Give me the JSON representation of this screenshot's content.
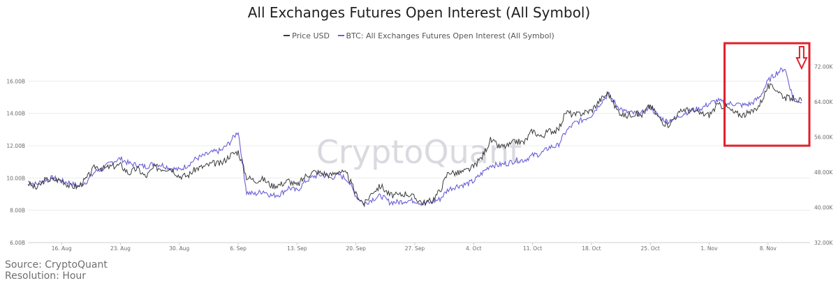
{
  "title": "All Exchanges Futures Open Interest (All Symbol)",
  "watermark": "CryptoQuant",
  "footer": {
    "source": "Source: CryptoQuant",
    "resolution": "Resolution: Hour"
  },
  "colors": {
    "price": "#3a3a3a",
    "open_interest": "#6a5fd6",
    "highlight": "#e0202a",
    "grid": "#ececec"
  },
  "chart_data": {
    "type": "line",
    "title": "All Exchanges Futures Open Interest (All Symbol)",
    "legend_position": "top-center",
    "grid": true,
    "x_range": [
      "2021-08-12",
      "2021-11-13"
    ],
    "x_ticks": [
      {
        "date": "2021-08-16",
        "label": "16. Aug"
      },
      {
        "date": "2021-08-23",
        "label": "23. Aug"
      },
      {
        "date": "2021-08-30",
        "label": "30. Aug"
      },
      {
        "date": "2021-09-06",
        "label": "6. Sep"
      },
      {
        "date": "2021-09-13",
        "label": "13. Sep"
      },
      {
        "date": "2021-09-20",
        "label": "20. Sep"
      },
      {
        "date": "2021-09-27",
        "label": "27. Sep"
      },
      {
        "date": "2021-10-04",
        "label": "4. Oct"
      },
      {
        "date": "2021-10-11",
        "label": "11. Oct"
      },
      {
        "date": "2021-10-18",
        "label": "18. Oct"
      },
      {
        "date": "2021-10-25",
        "label": "25. Oct"
      },
      {
        "date": "2021-11-01",
        "label": "1. Nov"
      },
      {
        "date": "2021-11-08",
        "label": "8. Nov"
      }
    ],
    "y_left": {
      "range": [
        6,
        18
      ],
      "ticks": [
        6,
        8,
        10,
        12,
        14,
        16
      ],
      "tick_labels": [
        "6.00B",
        "8.00B",
        "10.00B",
        "12.00B",
        "14.00B",
        "16.00B"
      ]
    },
    "y_right": {
      "range": [
        32000,
        76000
      ],
      "ticks": [
        32000,
        40000,
        48000,
        56000,
        64000,
        72000
      ],
      "tick_labels": [
        "32.00K",
        "40.00K",
        "48.00K",
        "56.00K",
        "64.00K",
        "72.00K"
      ]
    },
    "series": [
      {
        "name": "Price USD",
        "axis": "right",
        "points": [
          [
            "2021-08-12",
            45500
          ],
          [
            "2021-08-13",
            44300
          ],
          [
            "2021-08-14",
            46200
          ],
          [
            "2021-08-15",
            46300
          ],
          [
            "2021-08-16",
            46200
          ],
          [
            "2021-08-17",
            44800
          ],
          [
            "2021-08-18",
            44700
          ],
          [
            "2021-08-19",
            46600
          ],
          [
            "2021-08-20",
            49300
          ],
          [
            "2021-08-21",
            48800
          ],
          [
            "2021-08-22",
            49300
          ],
          [
            "2021-08-23",
            49600
          ],
          [
            "2021-08-24",
            47700
          ],
          [
            "2021-08-25",
            48900
          ],
          [
            "2021-08-26",
            46900
          ],
          [
            "2021-08-27",
            49100
          ],
          [
            "2021-08-28",
            48800
          ],
          [
            "2021-08-29",
            48900
          ],
          [
            "2021-08-30",
            47100
          ],
          [
            "2021-08-31",
            47200
          ],
          [
            "2021-09-01",
            48800
          ],
          [
            "2021-09-02",
            49300
          ],
          [
            "2021-09-03",
            50000
          ],
          [
            "2021-09-04",
            49900
          ],
          [
            "2021-09-05",
            51800
          ],
          [
            "2021-09-06",
            52700
          ],
          [
            "2021-09-07",
            46900
          ],
          [
            "2021-09-08",
            46100
          ],
          [
            "2021-09-09",
            46400
          ],
          [
            "2021-09-10",
            44900
          ],
          [
            "2021-09-11",
            45200
          ],
          [
            "2021-09-12",
            46100
          ],
          [
            "2021-09-13",
            44900
          ],
          [
            "2021-09-14",
            47100
          ],
          [
            "2021-09-15",
            48100
          ],
          [
            "2021-09-16",
            47800
          ],
          [
            "2021-09-17",
            47300
          ],
          [
            "2021-09-18",
            48300
          ],
          [
            "2021-09-19",
            47300
          ],
          [
            "2021-09-20",
            43000
          ],
          [
            "2021-09-21",
            40700
          ],
          [
            "2021-09-22",
            43600
          ],
          [
            "2021-09-23",
            44900
          ],
          [
            "2021-09-24",
            42800
          ],
          [
            "2021-09-25",
            42700
          ],
          [
            "2021-09-26",
            43200
          ],
          [
            "2021-09-27",
            42200
          ],
          [
            "2021-09-28",
            41000
          ],
          [
            "2021-09-29",
            41500
          ],
          [
            "2021-09-30",
            43800
          ],
          [
            "2021-10-01",
            48100
          ],
          [
            "2021-10-02",
            47700
          ],
          [
            "2021-10-03",
            48200
          ],
          [
            "2021-10-04",
            49200
          ],
          [
            "2021-10-05",
            51500
          ],
          [
            "2021-10-06",
            55300
          ],
          [
            "2021-10-07",
            53800
          ],
          [
            "2021-10-08",
            53900
          ],
          [
            "2021-10-09",
            55000
          ],
          [
            "2021-10-10",
            54700
          ],
          [
            "2021-10-11",
            57500
          ],
          [
            "2021-10-12",
            56000
          ],
          [
            "2021-10-13",
            57400
          ],
          [
            "2021-10-14",
            57400
          ],
          [
            "2021-10-15",
            61700
          ],
          [
            "2021-10-16",
            60900
          ],
          [
            "2021-10-17",
            61500
          ],
          [
            "2021-10-18",
            62000
          ],
          [
            "2021-10-19",
            64300
          ],
          [
            "2021-10-20",
            66000
          ],
          [
            "2021-10-21",
            62200
          ],
          [
            "2021-10-22",
            60700
          ],
          [
            "2021-10-23",
            61300
          ],
          [
            "2021-10-24",
            61000
          ],
          [
            "2021-10-25",
            63200
          ],
          [
            "2021-10-26",
            60400
          ],
          [
            "2021-10-27",
            58500
          ],
          [
            "2021-10-28",
            60600
          ],
          [
            "2021-10-29",
            62300
          ],
          [
            "2021-10-30",
            61900
          ],
          [
            "2021-10-31",
            61300
          ],
          [
            "2021-11-01",
            61000
          ],
          [
            "2021-11-02",
            63200
          ],
          [
            "2021-11-03",
            62900
          ],
          [
            "2021-11-04",
            61400
          ],
          [
            "2021-11-05",
            61000
          ],
          [
            "2021-11-06",
            61500
          ],
          [
            "2021-11-07",
            63300
          ],
          [
            "2021-11-08",
            67500
          ],
          [
            "2021-11-09",
            66900
          ],
          [
            "2021-11-10",
            64900
          ],
          [
            "2021-11-11",
            64800
          ],
          [
            "2021-11-12",
            64200
          ]
        ]
      },
      {
        "name": "BTC: All Exchanges Futures Open Interest (All Symbol)",
        "axis": "left",
        "points": [
          [
            "2021-08-12",
            9.8
          ],
          [
            "2021-08-13",
            9.6
          ],
          [
            "2021-08-14",
            9.9
          ],
          [
            "2021-08-15",
            10.0
          ],
          [
            "2021-08-16",
            9.8
          ],
          [
            "2021-08-17",
            9.7
          ],
          [
            "2021-08-18",
            9.5
          ],
          [
            "2021-08-19",
            9.8
          ],
          [
            "2021-08-20",
            10.4
          ],
          [
            "2021-08-21",
            10.6
          ],
          [
            "2021-08-22",
            11.0
          ],
          [
            "2021-08-23",
            11.2
          ],
          [
            "2021-08-24",
            10.9
          ],
          [
            "2021-08-25",
            10.8
          ],
          [
            "2021-08-26",
            10.7
          ],
          [
            "2021-08-27",
            10.9
          ],
          [
            "2021-08-28",
            10.8
          ],
          [
            "2021-08-29",
            10.6
          ],
          [
            "2021-08-30",
            10.5
          ],
          [
            "2021-08-31",
            10.8
          ],
          [
            "2021-09-01",
            11.2
          ],
          [
            "2021-09-02",
            11.4
          ],
          [
            "2021-09-03",
            11.6
          ],
          [
            "2021-09-04",
            11.7
          ],
          [
            "2021-09-05",
            12.2
          ],
          [
            "2021-09-06",
            12.9
          ],
          [
            "2021-09-07",
            9.1
          ],
          [
            "2021-09-08",
            9.0
          ],
          [
            "2021-09-09",
            9.2
          ],
          [
            "2021-09-10",
            8.9
          ],
          [
            "2021-09-11",
            9.0
          ],
          [
            "2021-09-12",
            9.4
          ],
          [
            "2021-09-13",
            9.2
          ],
          [
            "2021-09-14",
            9.8
          ],
          [
            "2021-09-15",
            10.1
          ],
          [
            "2021-09-16",
            10.2
          ],
          [
            "2021-09-17",
            10.0
          ],
          [
            "2021-09-18",
            10.2
          ],
          [
            "2021-09-19",
            9.9
          ],
          [
            "2021-09-20",
            8.9
          ],
          [
            "2021-09-21",
            8.4
          ],
          [
            "2021-09-22",
            8.7
          ],
          [
            "2021-09-23",
            8.9
          ],
          [
            "2021-09-24",
            8.5
          ],
          [
            "2021-09-25",
            8.5
          ],
          [
            "2021-09-26",
            8.6
          ],
          [
            "2021-09-27",
            8.6
          ],
          [
            "2021-09-28",
            8.4
          ],
          [
            "2021-09-29",
            8.5
          ],
          [
            "2021-09-30",
            8.7
          ],
          [
            "2021-10-01",
            9.3
          ],
          [
            "2021-10-02",
            9.5
          ],
          [
            "2021-10-03",
            9.6
          ],
          [
            "2021-10-04",
            9.8
          ],
          [
            "2021-10-05",
            10.3
          ],
          [
            "2021-10-06",
            10.8
          ],
          [
            "2021-10-07",
            10.8
          ],
          [
            "2021-10-08",
            10.9
          ],
          [
            "2021-10-09",
            11.1
          ],
          [
            "2021-10-10",
            11.1
          ],
          [
            "2021-10-11",
            11.4
          ],
          [
            "2021-10-12",
            11.5
          ],
          [
            "2021-10-13",
            11.9
          ],
          [
            "2021-10-14",
            12.0
          ],
          [
            "2021-10-15",
            12.9
          ],
          [
            "2021-10-16",
            13.4
          ],
          [
            "2021-10-17",
            13.6
          ],
          [
            "2021-10-18",
            13.9
          ],
          [
            "2021-10-19",
            14.6
          ],
          [
            "2021-10-20",
            15.2
          ],
          [
            "2021-10-21",
            14.5
          ],
          [
            "2021-10-22",
            14.1
          ],
          [
            "2021-10-23",
            14.0
          ],
          [
            "2021-10-24",
            14.0
          ],
          [
            "2021-10-25",
            14.4
          ],
          [
            "2021-10-26",
            13.8
          ],
          [
            "2021-10-27",
            13.5
          ],
          [
            "2021-10-28",
            13.7
          ],
          [
            "2021-10-29",
            14.0
          ],
          [
            "2021-10-30",
            14.2
          ],
          [
            "2021-10-31",
            14.3
          ],
          [
            "2021-11-01",
            14.6
          ],
          [
            "2021-11-02",
            14.8
          ],
          [
            "2021-11-03",
            14.6
          ],
          [
            "2021-11-04",
            14.6
          ],
          [
            "2021-11-05",
            14.5
          ],
          [
            "2021-11-06",
            14.6
          ],
          [
            "2021-11-07",
            15.0
          ],
          [
            "2021-11-08",
            16.0
          ],
          [
            "2021-11-09",
            16.5
          ],
          [
            "2021-11-10",
            16.8
          ],
          [
            "2021-11-11",
            14.9
          ],
          [
            "2021-11-12",
            14.7
          ]
        ]
      }
    ],
    "annotations": [
      {
        "type": "rectangle",
        "description": "red box highlighting recent data",
        "from": "2021-11-03",
        "to": "2021-11-13"
      },
      {
        "type": "down-arrow",
        "at": "2021-11-11"
      }
    ]
  }
}
